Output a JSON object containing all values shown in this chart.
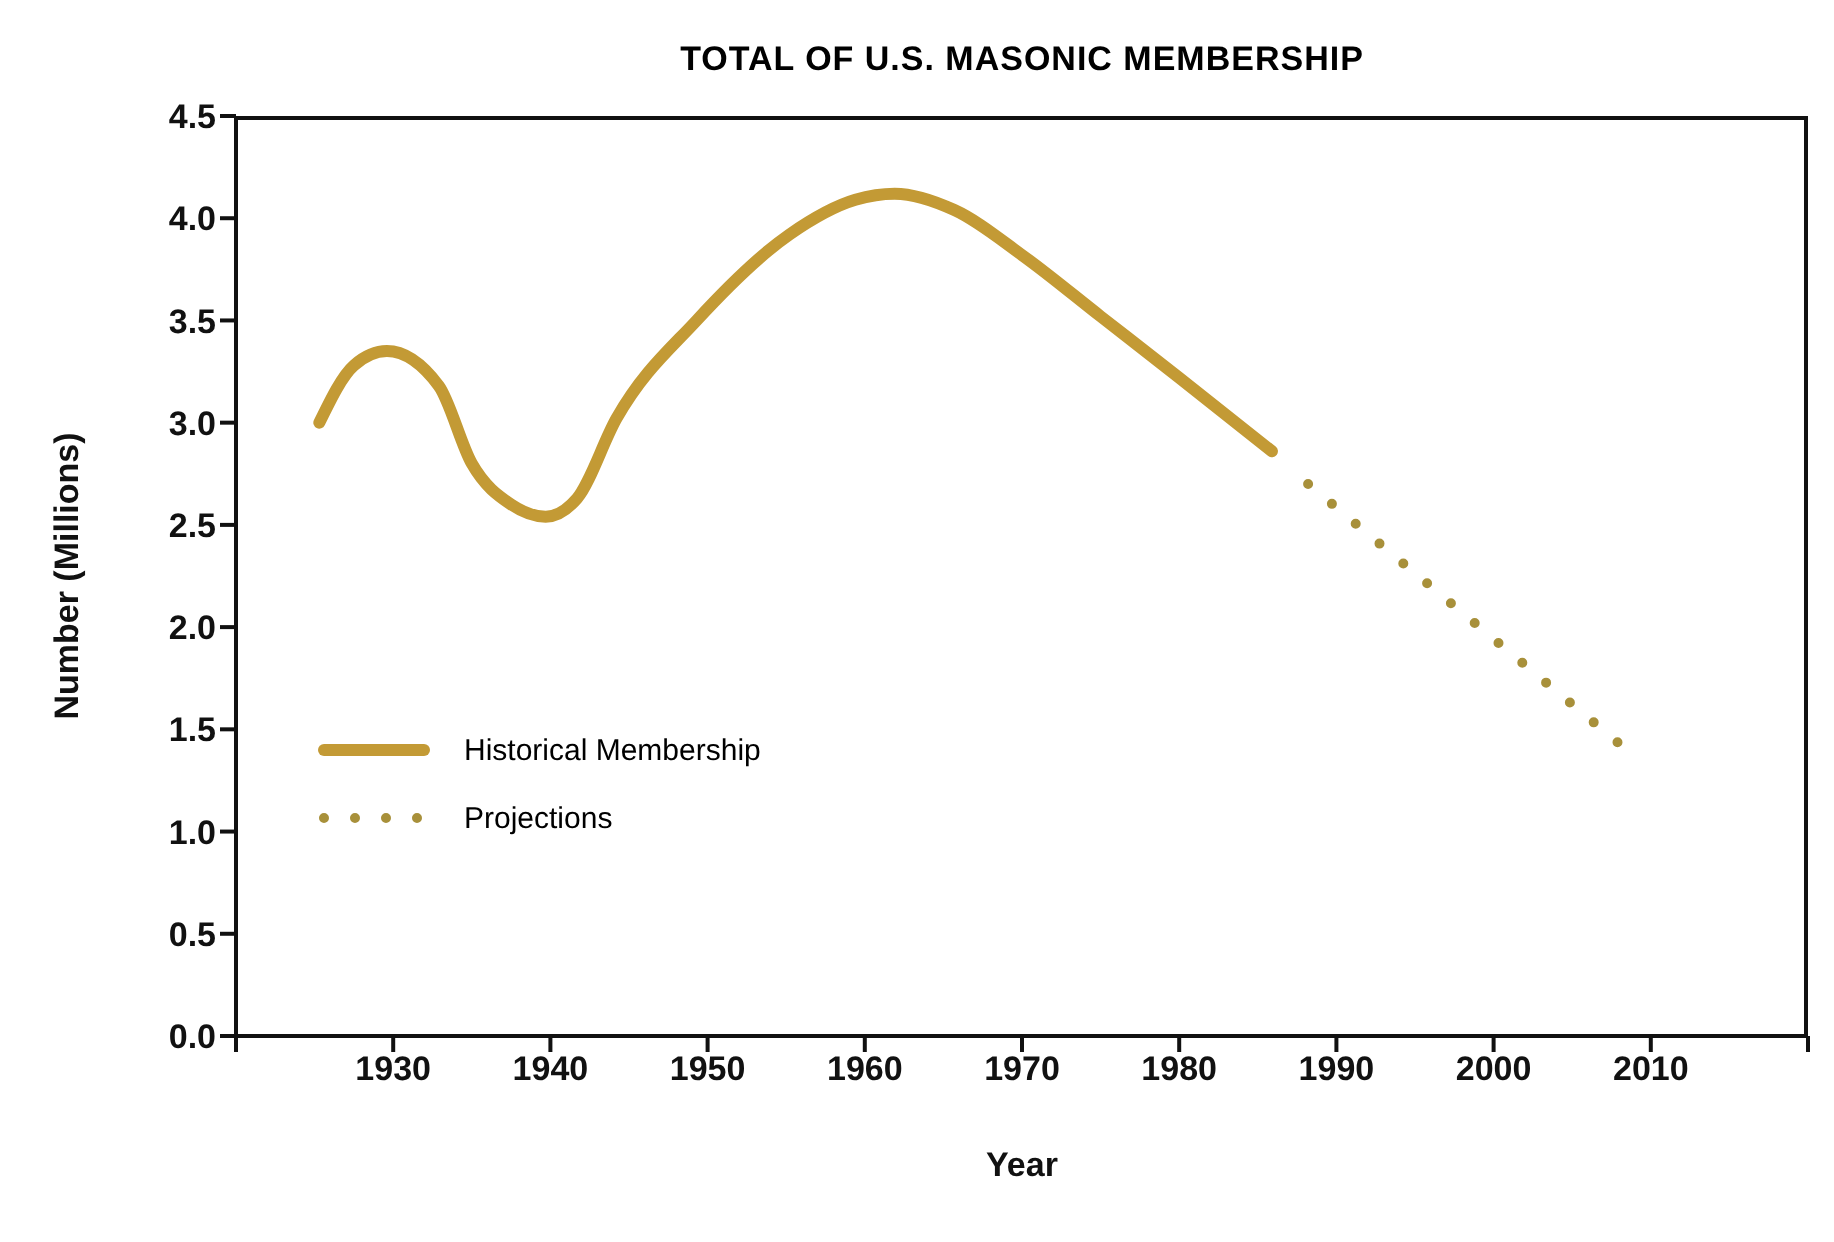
{
  "chart_data": {
    "type": "line",
    "title": "TOTAL OF U.S. MASONIC MEMBERSHIP",
    "xlabel": "Year",
    "ylabel": "Number (Millions)",
    "xlim": [
      1920,
      2020
    ],
    "xticks": [
      {
        "value": 1920,
        "label": null
      },
      1930,
      1940,
      1950,
      1960,
      1970,
      1980,
      1990,
      2000,
      2010,
      {
        "value": 2020,
        "label": null
      }
    ],
    "ylim": [
      0,
      4.5
    ],
    "yticks": [
      {
        "value": 0,
        "label": "0.0"
      },
      0.5,
      {
        "value": 1,
        "label": "1.0"
      },
      1.5,
      {
        "value": 2,
        "label": "2.0"
      },
      2.5,
      {
        "value": 3,
        "label": "3.0"
      },
      3.5,
      {
        "value": 4,
        "label": "4.0"
      },
      4.5
    ],
    "grid": false,
    "legend": "bottom left",
    "marker": "none",
    "series": [
      {
        "name": "Historical Membership",
        "color": "#c39a35",
        "line_style": "solid",
        "x": [
          1925.3,
          1927.5,
          1929.6,
          1932.9,
          1935,
          1937.5,
          1939.7,
          1941.7,
          1944.2,
          1949.3,
          1955.2,
          1959.4,
          1961.9,
          1965.7,
          1970,
          1975,
          1980,
          1985.9
        ],
        "values": [
          3.0,
          3.28,
          3.35,
          3.18,
          2.8,
          2.6,
          2.54,
          2.63,
          3.02,
          3.5,
          3.92,
          4.09,
          4.12,
          4.04,
          3.82,
          3.52,
          3.22,
          2.86
        ]
      },
      {
        "name": "Projections",
        "color": "#a8903a",
        "line_style": "dotted",
        "x": [
          1988.2,
          2008.3
        ],
        "values": [
          2.7,
          1.41
        ]
      }
    ]
  }
}
